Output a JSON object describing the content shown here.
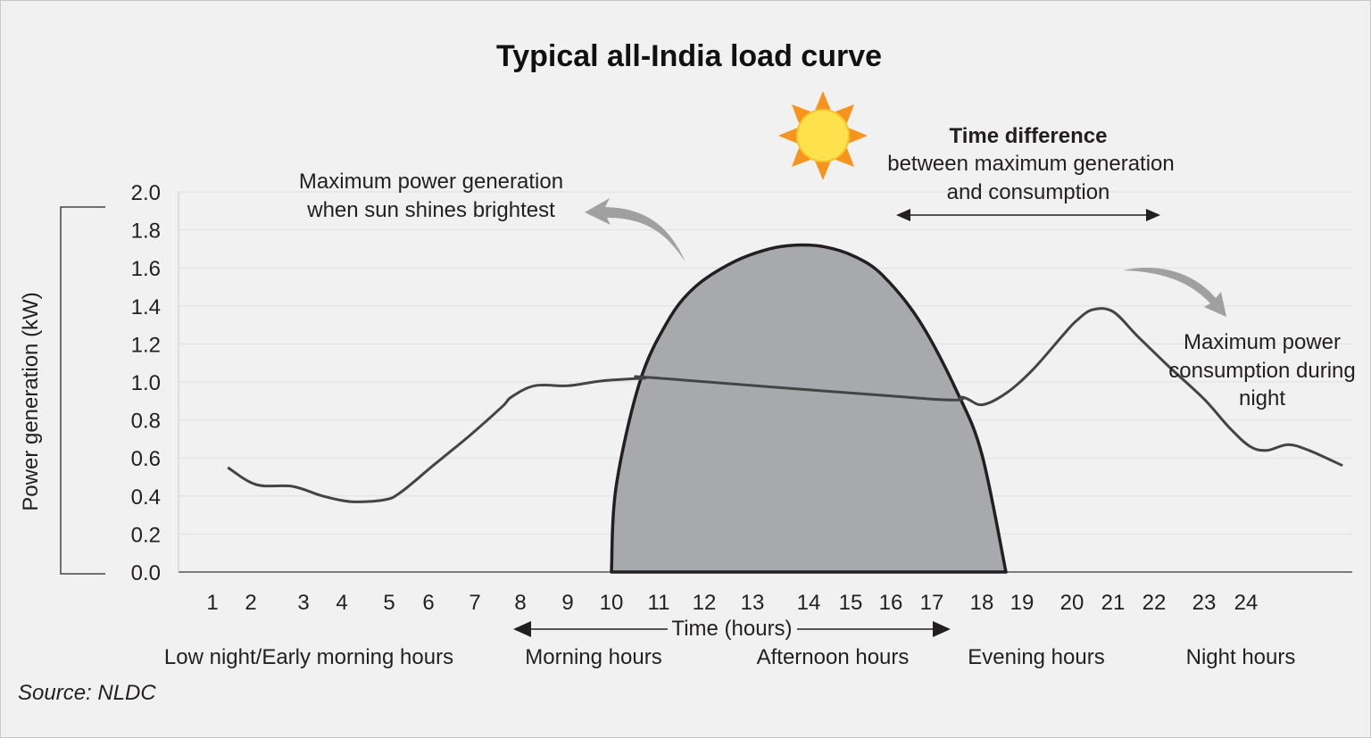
{
  "chart_data": {
    "type": "line",
    "title": "Typical all-India load curve",
    "ylabel": "Power generation (kW)",
    "xlabel": "Time (hours)",
    "ylim": [
      0,
      2.0
    ],
    "y_ticks": [
      "0.0",
      "0.2",
      "0.4",
      "0.6",
      "0.8",
      "1.0",
      "1.2",
      "1.4",
      "1.6",
      "1.8",
      "2.0"
    ],
    "x_ticks": [
      "1",
      "2",
      "3",
      "4",
      "5",
      "6",
      "7",
      "8",
      "9",
      "10",
      "11",
      "12",
      "13",
      "14",
      "15",
      "16",
      "17",
      "18",
      "19",
      "20",
      "21",
      "22",
      "23",
      "24"
    ],
    "grid": true,
    "series": [
      {
        "kind": "load_curve",
        "x": [
          1.4,
          2.1,
          2.8,
          3.5,
          4.2,
          4.9,
          5.3,
          6.1,
          6.9,
          7.6,
          7.8,
          8.3,
          9.0,
          9.6,
          10.0,
          10.7,
          11.0,
          17.0,
          17.6,
          18.0,
          18.6,
          19.2,
          19.8,
          20.1,
          20.5,
          21.0,
          21.6,
          22.3,
          23.0,
          23.6,
          24.1,
          24.5,
          25.0,
          25.5,
          26.3
        ],
        "y": [
          0.55,
          0.46,
          0.45,
          0.4,
          0.37,
          0.38,
          0.42,
          0.56,
          0.72,
          0.87,
          0.92,
          0.98,
          0.98,
          1.0,
          1.01,
          1.02,
          1.02,
          0.91,
          0.92,
          0.88,
          0.94,
          1.06,
          1.24,
          1.32,
          1.38,
          1.37,
          1.24,
          1.08,
          0.91,
          0.76,
          0.66,
          0.64,
          0.67,
          0.64,
          0.56
        ]
      },
      {
        "kind": "solar_generation",
        "x": [
          10.0,
          10.1,
          10.6,
          11.2,
          11.8,
          12.6,
          13.3,
          13.8,
          14.4,
          15.1,
          15.8,
          16.7,
          17.5,
          18.0,
          18.6
        ],
        "y": [
          0.0,
          0.45,
          1.0,
          1.32,
          1.5,
          1.63,
          1.7,
          1.72,
          1.71,
          1.66,
          1.56,
          1.32,
          0.95,
          0.62,
          0.0
        ]
      }
    ],
    "period_labels": [
      "Low night/Early morning hours",
      "Morning hours",
      "Afternoon hours",
      "Evening hours",
      "Night hours"
    ],
    "annotations": {
      "max_generation": [
        "Maximum power generation",
        "when sun shines brightest"
      ],
      "time_difference_title": "Time difference",
      "time_difference_body": [
        "between maximum generation",
        "and consumption"
      ],
      "max_consumption": [
        "Maximum power",
        "consumption during",
        "night"
      ]
    },
    "source": "Source: NLDC"
  },
  "colors": {
    "background": "#f1f1f2",
    "grid": "#e0e0e0",
    "line": "#444444",
    "solar_fill": "#a7a9ac",
    "solar_stroke": "#231f20",
    "arrow_gray": "#a0a0a0",
    "sun_core": "#ffe14d",
    "sun_rays": "#f7941d"
  }
}
